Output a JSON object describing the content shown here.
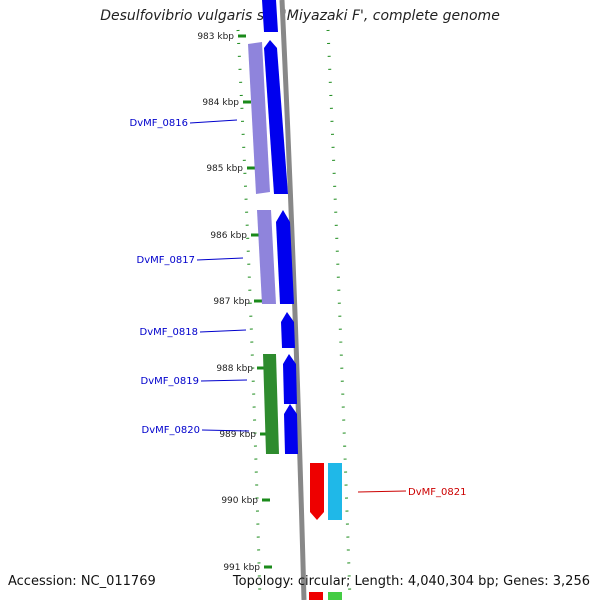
{
  "title": "Desulfovibrio vulgaris str. 'Miyazaki F', complete genome",
  "footer": {
    "accession": "Accession: NC_011769",
    "info": "Topology: circular; Length: 4,040,304 bp; Genes: 3,256"
  },
  "colors": {
    "forward_cds": "#0000ee",
    "forward_cds_light": "#7b6fd6",
    "green_feature": "#2e8b2e",
    "reverse_cds": "#ee0000",
    "cyan_feature": "#1fb8e8",
    "backbone": "#888888",
    "tick": "#1a8a1a",
    "label_blue": "#0000cc",
    "label_red": "#cc0000"
  },
  "ticks": [
    {
      "label": "983 kbp"
    },
    {
      "label": "984 kbp"
    },
    {
      "label": "985 kbp"
    },
    {
      "label": "986 kbp"
    },
    {
      "label": "987 kbp"
    },
    {
      "label": "988 kbp"
    },
    {
      "label": "989 kbp"
    },
    {
      "label": "990 kbp"
    },
    {
      "label": "991 kbp"
    }
  ],
  "genes": [
    {
      "label": "DvMF_0816",
      "strand": "forward"
    },
    {
      "label": "DvMF_0817",
      "strand": "forward"
    },
    {
      "label": "DvMF_0818",
      "strand": "forward"
    },
    {
      "label": "DvMF_0819",
      "strand": "forward"
    },
    {
      "label": "DvMF_0820",
      "strand": "forward"
    },
    {
      "label": "DvMF_0821",
      "strand": "reverse"
    }
  ]
}
